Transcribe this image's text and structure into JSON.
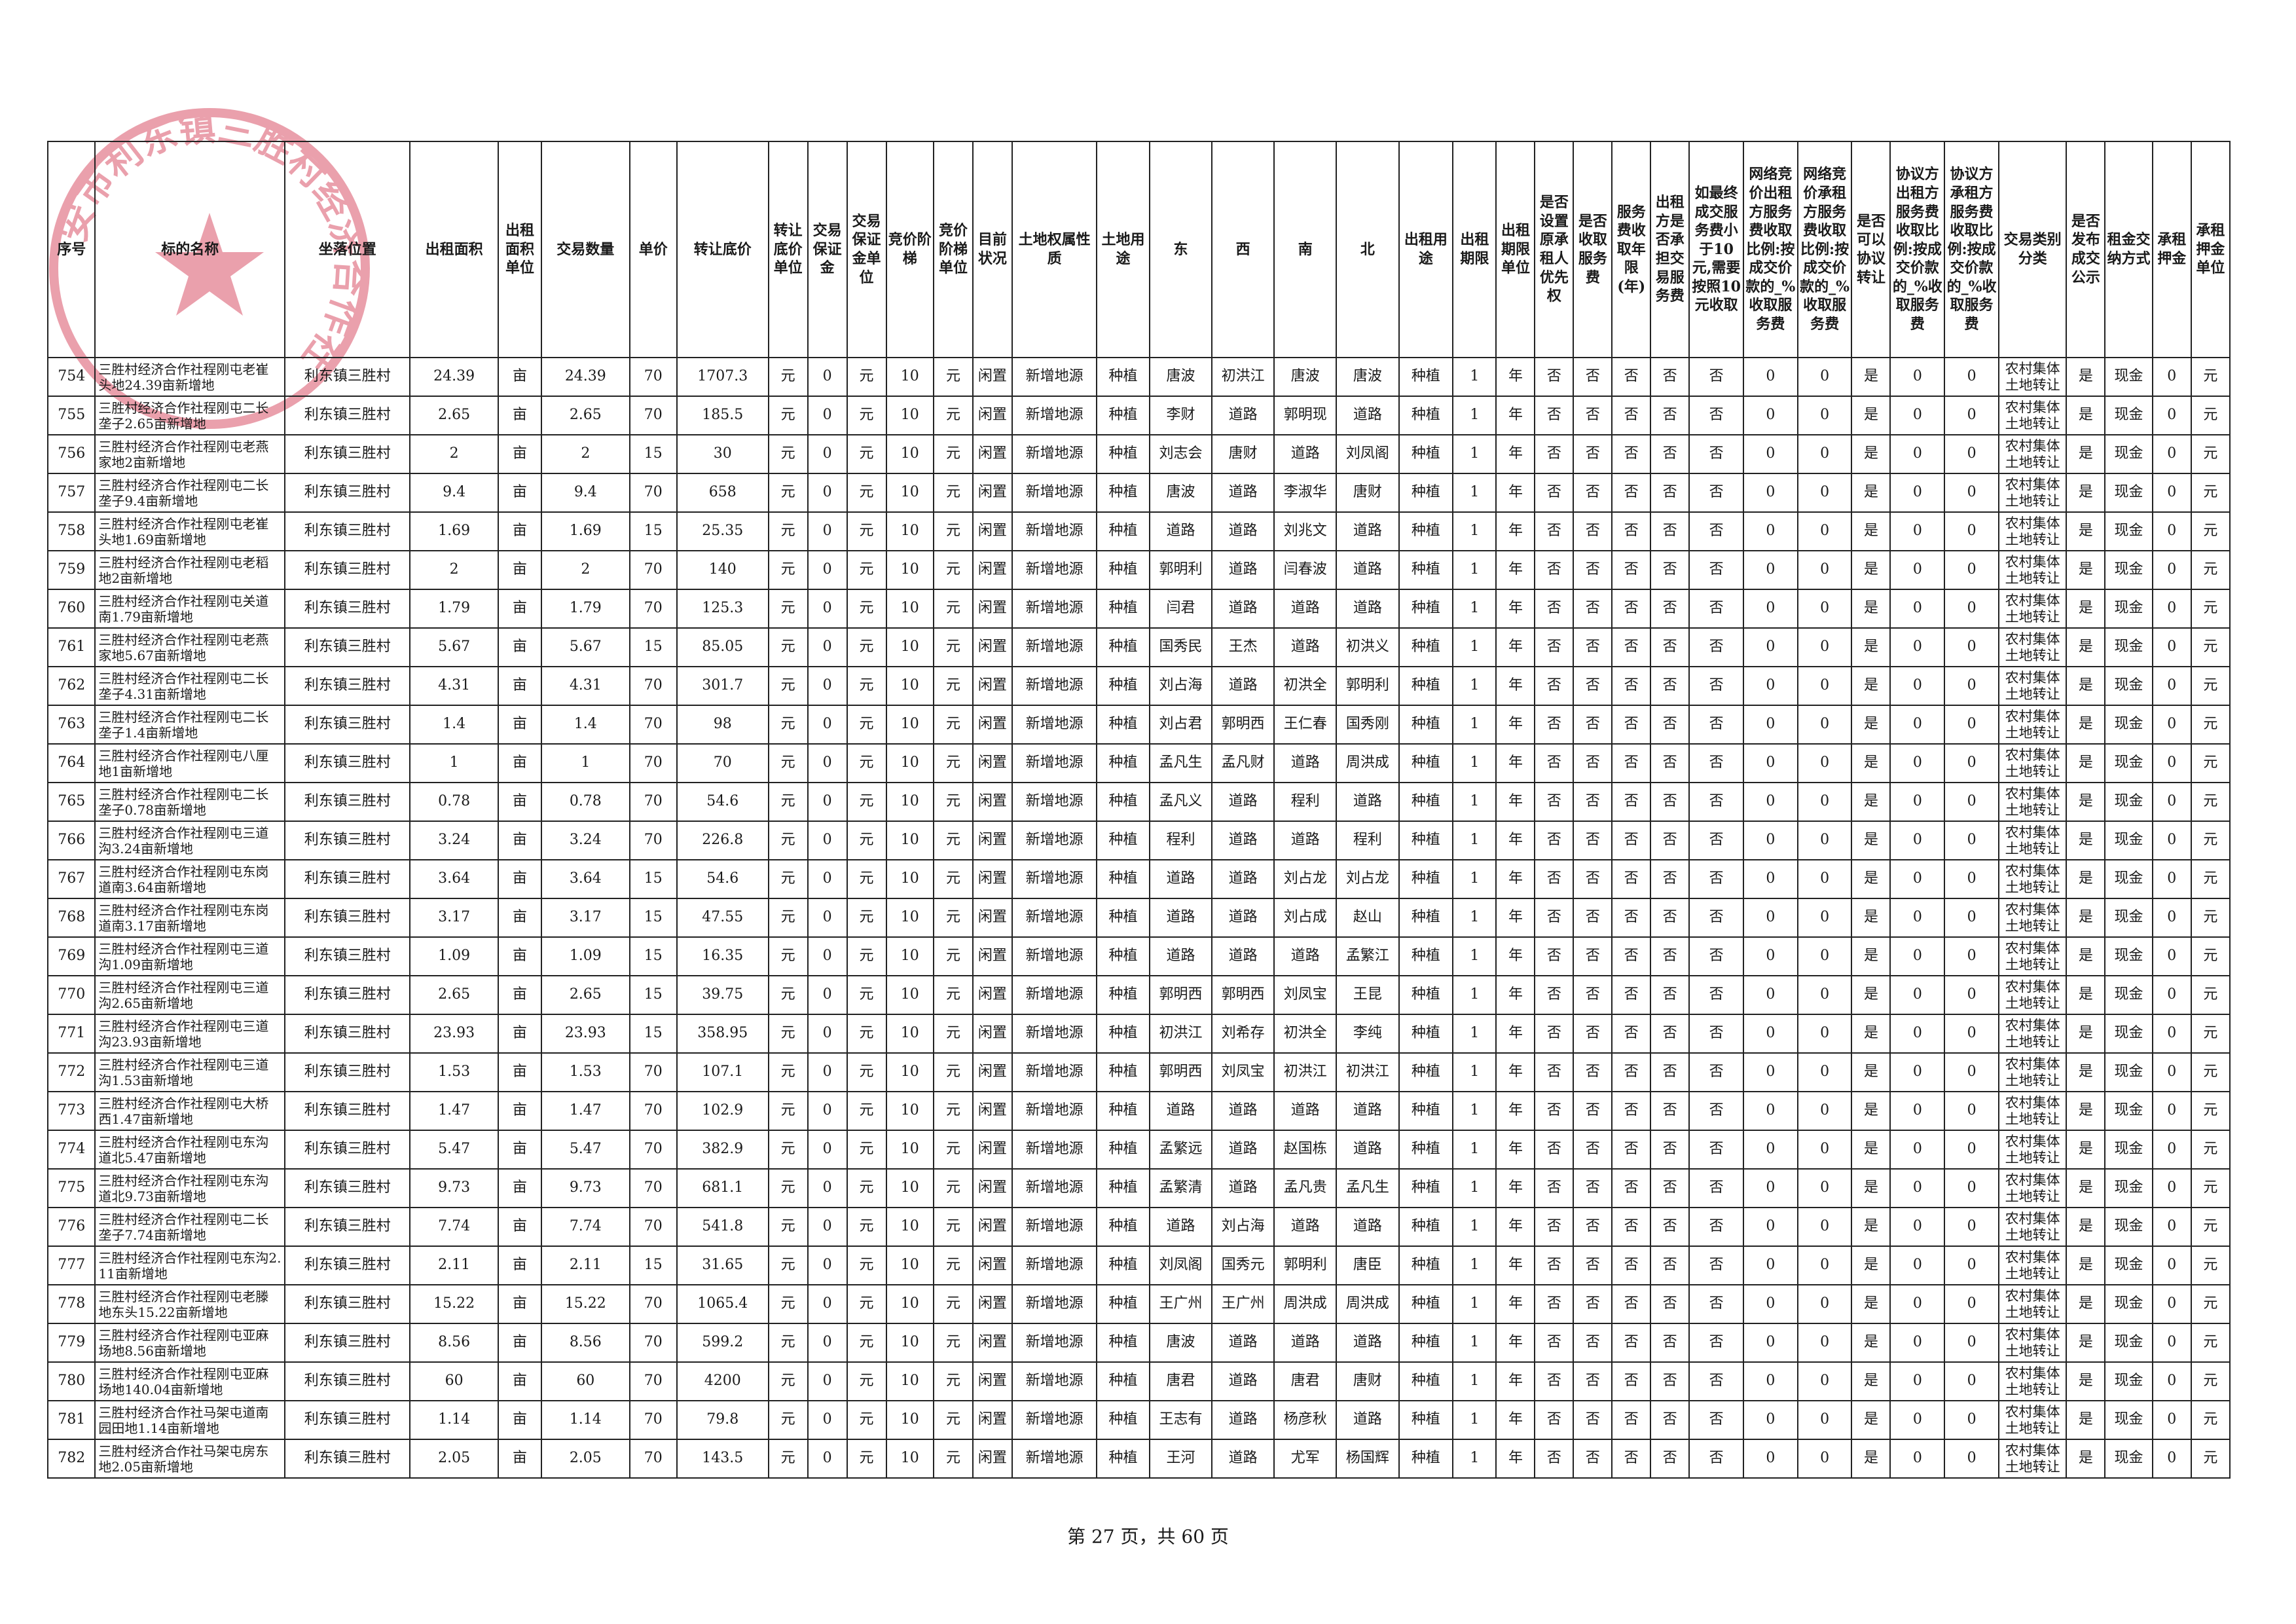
{
  "headers": [
    "序号",
    "标的名称",
    "坐落位置",
    "出租面积",
    "出租面积单位",
    "交易数量",
    "单价",
    "转让底价",
    "转让底价单位",
    "交易保证金",
    "交易保证金单位",
    "竞价阶梯",
    "竞价阶梯单位",
    "目前状况",
    "土地权属性质",
    "土地用途",
    "东",
    "西",
    "南",
    "北",
    "出租用途",
    "出租期限",
    "出租期限单位",
    "是否设置原承租人优先权",
    "是否收取服务费",
    "服务费收取年限(年)",
    "出租方是否承担交易服务费",
    "如最终成交服务费小于10元,需要按照10元收取",
    "网络竞价出租方服务费收取比例:按成交价款的_%收取服务费",
    "网络竞价承租方服务费收取比例:按成交价款的_%收取服务费",
    "是否可以协议转让",
    "协议方出租方服务费收取比例:按成交价款的_%收取服务费",
    "协议方承租方服务费收取比例:按成交价款的_%收取服务费",
    "交易类别分类",
    "是否发布成交公示",
    "租金交纳方式",
    "承租押金",
    "承租押金单位"
  ],
  "rows": [
    [
      "754",
      "三胜村经济合作社程刚屯老崔头地24.39亩新增地",
      "利东镇三胜村",
      "24.39",
      "亩",
      "24.39",
      "70",
      "1707.3",
      "元",
      "0",
      "元",
      "10",
      "元",
      "闲置",
      "新增地源",
      "种植",
      "唐波",
      "初洪江",
      "唐波",
      "唐波",
      "种植",
      "1",
      "年",
      "否",
      "否",
      "否",
      "否",
      "否",
      "0",
      "0",
      "是",
      "0",
      "0",
      "农村集体土地转让",
      "是",
      "现金",
      "0",
      "元"
    ],
    [
      "755",
      "三胜村经济合作社程刚屯二长垄子2.65亩新增地",
      "利东镇三胜村",
      "2.65",
      "亩",
      "2.65",
      "70",
      "185.5",
      "元",
      "0",
      "元",
      "10",
      "元",
      "闲置",
      "新增地源",
      "种植",
      "李财",
      "道路",
      "郭明现",
      "道路",
      "种植",
      "1",
      "年",
      "否",
      "否",
      "否",
      "否",
      "否",
      "0",
      "0",
      "是",
      "0",
      "0",
      "农村集体土地转让",
      "是",
      "现金",
      "0",
      "元"
    ],
    [
      "756",
      "三胜村经济合作社程刚屯老燕家地2亩新增地",
      "利东镇三胜村",
      "2",
      "亩",
      "2",
      "15",
      "30",
      "元",
      "0",
      "元",
      "10",
      "元",
      "闲置",
      "新增地源",
      "种植",
      "刘志会",
      "唐财",
      "道路",
      "刘凤阁",
      "种植",
      "1",
      "年",
      "否",
      "否",
      "否",
      "否",
      "否",
      "0",
      "0",
      "是",
      "0",
      "0",
      "农村集体土地转让",
      "是",
      "现金",
      "0",
      "元"
    ],
    [
      "757",
      "三胜村经济合作社程刚屯二长垄子9.4亩新增地",
      "利东镇三胜村",
      "9.4",
      "亩",
      "9.4",
      "70",
      "658",
      "元",
      "0",
      "元",
      "10",
      "元",
      "闲置",
      "新增地源",
      "种植",
      "唐波",
      "道路",
      "李淑华",
      "唐财",
      "种植",
      "1",
      "年",
      "否",
      "否",
      "否",
      "否",
      "否",
      "0",
      "0",
      "是",
      "0",
      "0",
      "农村集体土地转让",
      "是",
      "现金",
      "0",
      "元"
    ],
    [
      "758",
      "三胜村经济合作社程刚屯老崔头地1.69亩新增地",
      "利东镇三胜村",
      "1.69",
      "亩",
      "1.69",
      "15",
      "25.35",
      "元",
      "0",
      "元",
      "10",
      "元",
      "闲置",
      "新增地源",
      "种植",
      "道路",
      "道路",
      "刘兆文",
      "道路",
      "种植",
      "1",
      "年",
      "否",
      "否",
      "否",
      "否",
      "否",
      "0",
      "0",
      "是",
      "0",
      "0",
      "农村集体土地转让",
      "是",
      "现金",
      "0",
      "元"
    ],
    [
      "759",
      "三胜村经济合作社程刚屯老稻地2亩新增地",
      "利东镇三胜村",
      "2",
      "亩",
      "2",
      "70",
      "140",
      "元",
      "0",
      "元",
      "10",
      "元",
      "闲置",
      "新增地源",
      "种植",
      "郭明利",
      "道路",
      "闫春波",
      "道路",
      "种植",
      "1",
      "年",
      "否",
      "否",
      "否",
      "否",
      "否",
      "0",
      "0",
      "是",
      "0",
      "0",
      "农村集体土地转让",
      "是",
      "现金",
      "0",
      "元"
    ],
    [
      "760",
      "三胜村经济合作社程刚屯关道南1.79亩新增地",
      "利东镇三胜村",
      "1.79",
      "亩",
      "1.79",
      "70",
      "125.3",
      "元",
      "0",
      "元",
      "10",
      "元",
      "闲置",
      "新增地源",
      "种植",
      "闫君",
      "道路",
      "道路",
      "道路",
      "种植",
      "1",
      "年",
      "否",
      "否",
      "否",
      "否",
      "否",
      "0",
      "0",
      "是",
      "0",
      "0",
      "农村集体土地转让",
      "是",
      "现金",
      "0",
      "元"
    ],
    [
      "761",
      "三胜村经济合作社程刚屯老燕家地5.67亩新增地",
      "利东镇三胜村",
      "5.67",
      "亩",
      "5.67",
      "15",
      "85.05",
      "元",
      "0",
      "元",
      "10",
      "元",
      "闲置",
      "新增地源",
      "种植",
      "国秀民",
      "王杰",
      "道路",
      "初洪义",
      "种植",
      "1",
      "年",
      "否",
      "否",
      "否",
      "否",
      "否",
      "0",
      "0",
      "是",
      "0",
      "0",
      "农村集体土地转让",
      "是",
      "现金",
      "0",
      "元"
    ],
    [
      "762",
      "三胜村经济合作社程刚屯二长垄子4.31亩新增地",
      "利东镇三胜村",
      "4.31",
      "亩",
      "4.31",
      "70",
      "301.7",
      "元",
      "0",
      "元",
      "10",
      "元",
      "闲置",
      "新增地源",
      "种植",
      "刘占海",
      "道路",
      "初洪全",
      "郭明利",
      "种植",
      "1",
      "年",
      "否",
      "否",
      "否",
      "否",
      "否",
      "0",
      "0",
      "是",
      "0",
      "0",
      "农村集体土地转让",
      "是",
      "现金",
      "0",
      "元"
    ],
    [
      "763",
      "三胜村经济合作社程刚屯二长垄子1.4亩新增地",
      "利东镇三胜村",
      "1.4",
      "亩",
      "1.4",
      "70",
      "98",
      "元",
      "0",
      "元",
      "10",
      "元",
      "闲置",
      "新增地源",
      "种植",
      "刘占君",
      "郭明西",
      "王仁春",
      "国秀刚",
      "种植",
      "1",
      "年",
      "否",
      "否",
      "否",
      "否",
      "否",
      "0",
      "0",
      "是",
      "0",
      "0",
      "农村集体土地转让",
      "是",
      "现金",
      "0",
      "元"
    ],
    [
      "764",
      "三胜村经济合作社程刚屯八厘地1亩新增地",
      "利东镇三胜村",
      "1",
      "亩",
      "1",
      "70",
      "70",
      "元",
      "0",
      "元",
      "10",
      "元",
      "闲置",
      "新增地源",
      "种植",
      "孟凡生",
      "孟凡财",
      "道路",
      "周洪成",
      "种植",
      "1",
      "年",
      "否",
      "否",
      "否",
      "否",
      "否",
      "0",
      "0",
      "是",
      "0",
      "0",
      "农村集体土地转让",
      "是",
      "现金",
      "0",
      "元"
    ],
    [
      "765",
      "三胜村经济合作社程刚屯二长垄子0.78亩新增地",
      "利东镇三胜村",
      "0.78",
      "亩",
      "0.78",
      "70",
      "54.6",
      "元",
      "0",
      "元",
      "10",
      "元",
      "闲置",
      "新增地源",
      "种植",
      "孟凡义",
      "道路",
      "程利",
      "道路",
      "种植",
      "1",
      "年",
      "否",
      "否",
      "否",
      "否",
      "否",
      "0",
      "0",
      "是",
      "0",
      "0",
      "农村集体土地转让",
      "是",
      "现金",
      "0",
      "元"
    ],
    [
      "766",
      "三胜村经济合作社程刚屯三道沟3.24亩新增地",
      "利东镇三胜村",
      "3.24",
      "亩",
      "3.24",
      "70",
      "226.8",
      "元",
      "0",
      "元",
      "10",
      "元",
      "闲置",
      "新增地源",
      "种植",
      "程利",
      "道路",
      "道路",
      "程利",
      "种植",
      "1",
      "年",
      "否",
      "否",
      "否",
      "否",
      "否",
      "0",
      "0",
      "是",
      "0",
      "0",
      "农村集体土地转让",
      "是",
      "现金",
      "0",
      "元"
    ],
    [
      "767",
      "三胜村经济合作社程刚屯东岗道南3.64亩新增地",
      "利东镇三胜村",
      "3.64",
      "亩",
      "3.64",
      "15",
      "54.6",
      "元",
      "0",
      "元",
      "10",
      "元",
      "闲置",
      "新增地源",
      "种植",
      "道路",
      "道路",
      "刘占龙",
      "刘占龙",
      "种植",
      "1",
      "年",
      "否",
      "否",
      "否",
      "否",
      "否",
      "0",
      "0",
      "是",
      "0",
      "0",
      "农村集体土地转让",
      "是",
      "现金",
      "0",
      "元"
    ],
    [
      "768",
      "三胜村经济合作社程刚屯东岗道南3.17亩新增地",
      "利东镇三胜村",
      "3.17",
      "亩",
      "3.17",
      "15",
      "47.55",
      "元",
      "0",
      "元",
      "10",
      "元",
      "闲置",
      "新增地源",
      "种植",
      "道路",
      "道路",
      "刘占成",
      "赵山",
      "种植",
      "1",
      "年",
      "否",
      "否",
      "否",
      "否",
      "否",
      "0",
      "0",
      "是",
      "0",
      "0",
      "农村集体土地转让",
      "是",
      "现金",
      "0",
      "元"
    ],
    [
      "769",
      "三胜村经济合作社程刚屯三道沟1.09亩新增地",
      "利东镇三胜村",
      "1.09",
      "亩",
      "1.09",
      "15",
      "16.35",
      "元",
      "0",
      "元",
      "10",
      "元",
      "闲置",
      "新增地源",
      "种植",
      "道路",
      "道路",
      "道路",
      "孟繁江",
      "种植",
      "1",
      "年",
      "否",
      "否",
      "否",
      "否",
      "否",
      "0",
      "0",
      "是",
      "0",
      "0",
      "农村集体土地转让",
      "是",
      "现金",
      "0",
      "元"
    ],
    [
      "770",
      "三胜村经济合作社程刚屯三道沟2.65亩新增地",
      "利东镇三胜村",
      "2.65",
      "亩",
      "2.65",
      "15",
      "39.75",
      "元",
      "0",
      "元",
      "10",
      "元",
      "闲置",
      "新增地源",
      "种植",
      "郭明西",
      "郭明西",
      "刘凤宝",
      "王昆",
      "种植",
      "1",
      "年",
      "否",
      "否",
      "否",
      "否",
      "否",
      "0",
      "0",
      "是",
      "0",
      "0",
      "农村集体土地转让",
      "是",
      "现金",
      "0",
      "元"
    ],
    [
      "771",
      "三胜村经济合作社程刚屯三道沟23.93亩新增地",
      "利东镇三胜村",
      "23.93",
      "亩",
      "23.93",
      "15",
      "358.95",
      "元",
      "0",
      "元",
      "10",
      "元",
      "闲置",
      "新增地源",
      "种植",
      "初洪江",
      "刘希存",
      "初洪全",
      "李纯",
      "种植",
      "1",
      "年",
      "否",
      "否",
      "否",
      "否",
      "否",
      "0",
      "0",
      "是",
      "0",
      "0",
      "农村集体土地转让",
      "是",
      "现金",
      "0",
      "元"
    ],
    [
      "772",
      "三胜村经济合作社程刚屯三道沟1.53亩新增地",
      "利东镇三胜村",
      "1.53",
      "亩",
      "1.53",
      "70",
      "107.1",
      "元",
      "0",
      "元",
      "10",
      "元",
      "闲置",
      "新增地源",
      "种植",
      "郭明西",
      "刘凤宝",
      "初洪江",
      "初洪江",
      "种植",
      "1",
      "年",
      "否",
      "否",
      "否",
      "否",
      "否",
      "0",
      "0",
      "是",
      "0",
      "0",
      "农村集体土地转让",
      "是",
      "现金",
      "0",
      "元"
    ],
    [
      "773",
      "三胜村经济合作社程刚屯大桥西1.47亩新增地",
      "利东镇三胜村",
      "1.47",
      "亩",
      "1.47",
      "70",
      "102.9",
      "元",
      "0",
      "元",
      "10",
      "元",
      "闲置",
      "新增地源",
      "种植",
      "道路",
      "道路",
      "道路",
      "道路",
      "种植",
      "1",
      "年",
      "否",
      "否",
      "否",
      "否",
      "否",
      "0",
      "0",
      "是",
      "0",
      "0",
      "农村集体土地转让",
      "是",
      "现金",
      "0",
      "元"
    ],
    [
      "774",
      "三胜村经济合作社程刚屯东沟道北5.47亩新增地",
      "利东镇三胜村",
      "5.47",
      "亩",
      "5.47",
      "70",
      "382.9",
      "元",
      "0",
      "元",
      "10",
      "元",
      "闲置",
      "新增地源",
      "种植",
      "孟繁远",
      "道路",
      "赵国栋",
      "道路",
      "种植",
      "1",
      "年",
      "否",
      "否",
      "否",
      "否",
      "否",
      "0",
      "0",
      "是",
      "0",
      "0",
      "农村集体土地转让",
      "是",
      "现金",
      "0",
      "元"
    ],
    [
      "775",
      "三胜村经济合作社程刚屯东沟道北9.73亩新增地",
      "利东镇三胜村",
      "9.73",
      "亩",
      "9.73",
      "70",
      "681.1",
      "元",
      "0",
      "元",
      "10",
      "元",
      "闲置",
      "新增地源",
      "种植",
      "孟繁清",
      "道路",
      "孟凡贵",
      "孟凡生",
      "种植",
      "1",
      "年",
      "否",
      "否",
      "否",
      "否",
      "否",
      "0",
      "0",
      "是",
      "0",
      "0",
      "农村集体土地转让",
      "是",
      "现金",
      "0",
      "元"
    ],
    [
      "776",
      "三胜村经济合作社程刚屯二长垄子7.74亩新增地",
      "利东镇三胜村",
      "7.74",
      "亩",
      "7.74",
      "70",
      "541.8",
      "元",
      "0",
      "元",
      "10",
      "元",
      "闲置",
      "新增地源",
      "种植",
      "道路",
      "刘占海",
      "道路",
      "道路",
      "种植",
      "1",
      "年",
      "否",
      "否",
      "否",
      "否",
      "否",
      "0",
      "0",
      "是",
      "0",
      "0",
      "农村集体土地转让",
      "是",
      "现金",
      "0",
      "元"
    ],
    [
      "777",
      "三胜村经济合作社程刚屯东沟2.11亩新增地",
      "利东镇三胜村",
      "2.11",
      "亩",
      "2.11",
      "15",
      "31.65",
      "元",
      "0",
      "元",
      "10",
      "元",
      "闲置",
      "新增地源",
      "种植",
      "刘凤阁",
      "国秀元",
      "郭明利",
      "唐臣",
      "种植",
      "1",
      "年",
      "否",
      "否",
      "否",
      "否",
      "否",
      "0",
      "0",
      "是",
      "0",
      "0",
      "农村集体土地转让",
      "是",
      "现金",
      "0",
      "元"
    ],
    [
      "778",
      "三胜村经济合作社程刚屯老滕地东头15.22亩新增地",
      "利东镇三胜村",
      "15.22",
      "亩",
      "15.22",
      "70",
      "1065.4",
      "元",
      "0",
      "元",
      "10",
      "元",
      "闲置",
      "新增地源",
      "种植",
      "王广州",
      "王广州",
      "周洪成",
      "周洪成",
      "种植",
      "1",
      "年",
      "否",
      "否",
      "否",
      "否",
      "否",
      "0",
      "0",
      "是",
      "0",
      "0",
      "农村集体土地转让",
      "是",
      "现金",
      "0",
      "元"
    ],
    [
      "779",
      "三胜村经济合作社程刚屯亚麻场地8.56亩新增地",
      "利东镇三胜村",
      "8.56",
      "亩",
      "8.56",
      "70",
      "599.2",
      "元",
      "0",
      "元",
      "10",
      "元",
      "闲置",
      "新增地源",
      "种植",
      "唐波",
      "道路",
      "道路",
      "道路",
      "种植",
      "1",
      "年",
      "否",
      "否",
      "否",
      "否",
      "否",
      "0",
      "0",
      "是",
      "0",
      "0",
      "农村集体土地转让",
      "是",
      "现金",
      "0",
      "元"
    ],
    [
      "780",
      "三胜村经济合作社程刚屯亚麻场地140.04亩新增地",
      "利东镇三胜村",
      "60",
      "亩",
      "60",
      "70",
      "4200",
      "元",
      "0",
      "元",
      "10",
      "元",
      "闲置",
      "新增地源",
      "种植",
      "唐君",
      "道路",
      "唐君",
      "唐财",
      "种植",
      "1",
      "年",
      "否",
      "否",
      "否",
      "否",
      "否",
      "0",
      "0",
      "是",
      "0",
      "0",
      "农村集体土地转让",
      "是",
      "现金",
      "0",
      "元"
    ],
    [
      "781",
      "三胜村经济合作社马架屯道南园田地1.14亩新增地",
      "利东镇三胜村",
      "1.14",
      "亩",
      "1.14",
      "70",
      "79.8",
      "元",
      "0",
      "元",
      "10",
      "元",
      "闲置",
      "新增地源",
      "种植",
      "王志有",
      "道路",
      "杨彦秋",
      "道路",
      "种植",
      "1",
      "年",
      "否",
      "否",
      "否",
      "否",
      "否",
      "0",
      "0",
      "是",
      "0",
      "0",
      "农村集体土地转让",
      "是",
      "现金",
      "0",
      "元"
    ],
    [
      "782",
      "三胜村经济合作社马架屯房东地2.05亩新增地",
      "利东镇三胜村",
      "2.05",
      "亩",
      "2.05",
      "70",
      "143.5",
      "元",
      "0",
      "元",
      "10",
      "元",
      "闲置",
      "新增地源",
      "种植",
      "王河",
      "道路",
      "尤军",
      "杨国辉",
      "种植",
      "1",
      "年",
      "否",
      "否",
      "否",
      "否",
      "否",
      "0",
      "0",
      "是",
      "0",
      "0",
      "农村集体土地转让",
      "是",
      "现金",
      "0",
      "元"
    ]
  ],
  "seal": {
    "text": "安市利东镇三胜村经济合作社",
    "color": "#d9546a"
  },
  "footer": {
    "page_text": "第 27 页，共 60 页"
  }
}
